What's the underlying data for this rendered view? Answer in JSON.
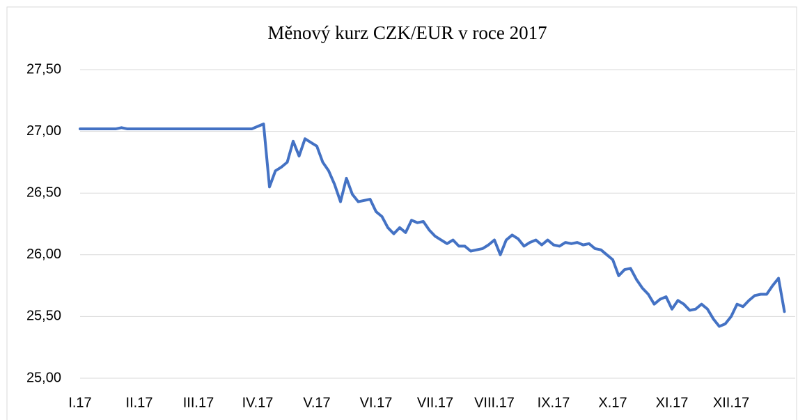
{
  "chart_data": {
    "type": "line",
    "title": "Měnový kurz CZK/EUR v roce 2017",
    "categories": [
      "I.17",
      null,
      null,
      null,
      null,
      null,
      null,
      null,
      null,
      null,
      "II.17",
      null,
      null,
      null,
      null,
      null,
      null,
      null,
      null,
      null,
      "III.17",
      null,
      null,
      null,
      null,
      null,
      null,
      null,
      null,
      null,
      "IV.17",
      null,
      null,
      null,
      null,
      null,
      null,
      null,
      null,
      null,
      "V.17",
      null,
      null,
      null,
      null,
      null,
      null,
      null,
      null,
      null,
      "VI.17",
      null,
      null,
      null,
      null,
      null,
      null,
      null,
      null,
      null,
      "VII.17",
      null,
      null,
      null,
      null,
      null,
      null,
      null,
      null,
      null,
      "VIII.17",
      null,
      null,
      null,
      null,
      null,
      null,
      null,
      null,
      null,
      "IX.17",
      null,
      null,
      null,
      null,
      null,
      null,
      null,
      null,
      null,
      "X.17",
      null,
      null,
      null,
      null,
      null,
      null,
      null,
      null,
      null,
      "XI.17",
      null,
      null,
      null,
      null,
      null,
      null,
      null,
      null,
      null,
      "XII.17",
      null,
      null,
      null,
      null,
      null,
      null,
      null,
      null,
      null
    ],
    "series": [
      {
        "color": "#4472c4",
        "values": [
          27.02,
          27.02,
          27.02,
          27.02,
          27.02,
          27.02,
          27.02,
          27.03,
          27.02,
          27.02,
          27.02,
          27.02,
          27.02,
          27.02,
          27.02,
          27.02,
          27.02,
          27.02,
          27.02,
          27.02,
          27.02,
          27.02,
          27.02,
          27.02,
          27.02,
          27.02,
          27.02,
          27.02,
          27.02,
          27.02,
          27.04,
          27.06,
          26.55,
          26.68,
          26.71,
          26.75,
          26.92,
          26.8,
          26.94,
          26.91,
          26.88,
          26.75,
          26.68,
          26.57,
          26.43,
          26.62,
          26.49,
          26.43,
          26.44,
          26.45,
          26.35,
          26.31,
          26.22,
          26.17,
          26.22,
          26.18,
          26.28,
          26.26,
          26.27,
          26.2,
          26.15,
          26.12,
          26.09,
          26.12,
          26.07,
          26.07,
          26.03,
          26.04,
          26.05,
          26.08,
          26.12,
          26.0,
          26.12,
          26.16,
          26.13,
          26.07,
          26.1,
          26.12,
          26.08,
          26.12,
          26.08,
          26.07,
          26.1,
          26.09,
          26.1,
          26.08,
          26.09,
          26.05,
          26.04,
          26.0,
          25.96,
          25.83,
          25.88,
          25.89,
          25.8,
          25.73,
          25.68,
          25.6,
          25.64,
          25.66,
          25.56,
          25.63,
          25.6,
          25.55,
          25.56,
          25.6,
          25.56,
          25.48,
          25.42,
          25.44,
          25.5,
          25.6,
          25.58,
          25.63,
          25.67,
          25.68,
          25.68,
          25.75,
          25.81,
          25.54
        ]
      }
    ],
    "ylim": [
      25,
      27.5
    ],
    "yticks": [
      {
        "value": 25,
        "label": "25,00"
      },
      {
        "value": 25.5,
        "label": "25,50"
      },
      {
        "value": 26,
        "label": "26,00"
      },
      {
        "value": 26.5,
        "label": "26,50"
      },
      {
        "value": 27,
        "label": "27,00"
      },
      {
        "value": 27.5,
        "label": "27,50"
      }
    ],
    "grid": true
  }
}
